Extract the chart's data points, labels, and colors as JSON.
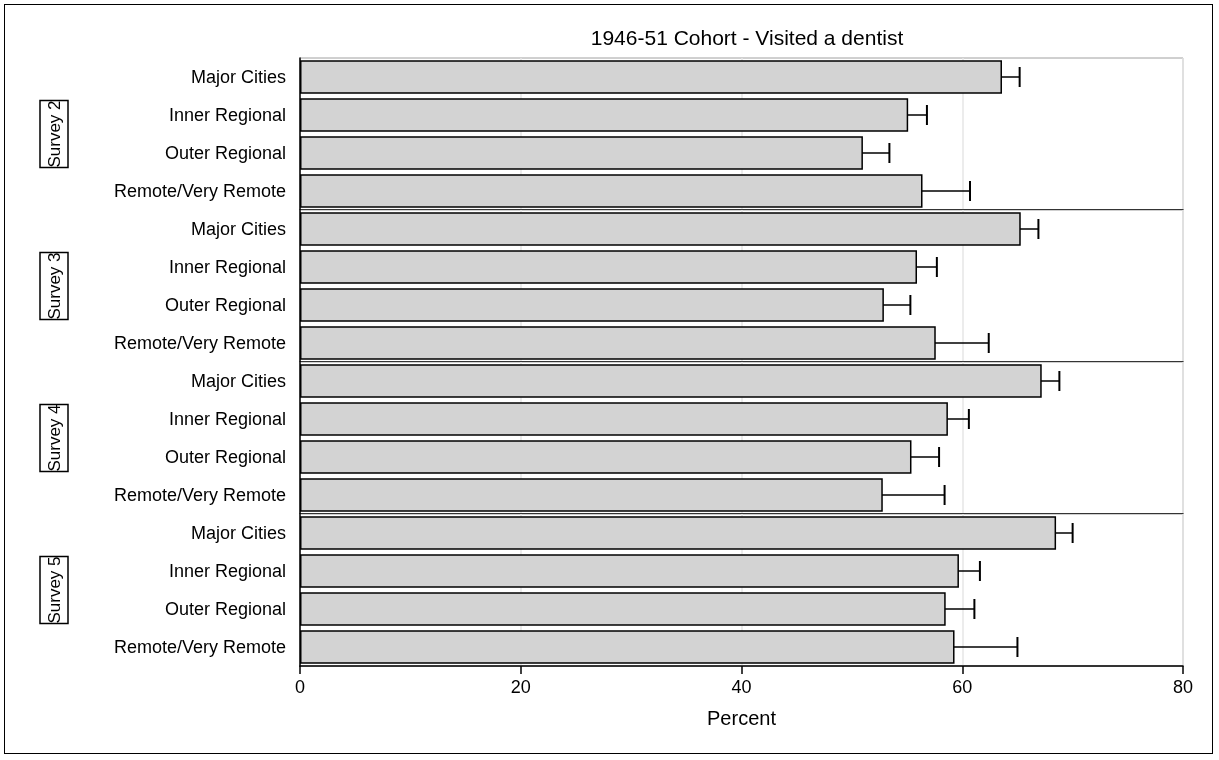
{
  "chart_data": [
    {
      "type": "bar",
      "orientation": "horizontal",
      "title": "1946-51 Cohort - Visited a dentist",
      "ylabel": "Survey 2",
      "categories": [
        "Major Cities",
        "Inner Regional",
        "Outer Regional",
        "Remote/Very Remote"
      ],
      "values": [
        63.6,
        55.1,
        51.0,
        56.4
      ],
      "errors": [
        1.6,
        1.7,
        2.4,
        4.3
      ],
      "color": "#d3d3d3",
      "xlim": [
        0,
        80
      ],
      "xticks": [
        0,
        20,
        40,
        60,
        80
      ],
      "grid": "x",
      "tick_labels": "y"
    },
    {
      "type": "bar",
      "orientation": "horizontal",
      "ylabel": "Survey 3",
      "categories": [
        "Major Cities",
        "Inner Regional",
        "Outer Regional",
        "Remote/Very Remote"
      ],
      "values": [
        65.3,
        55.9,
        52.9,
        57.6
      ],
      "errors": [
        1.6,
        1.8,
        2.4,
        4.8
      ],
      "color": "#d3d3d3",
      "xlim": [
        0,
        80
      ],
      "xticks": [
        0,
        20,
        40,
        60,
        80
      ],
      "grid": "x",
      "tick_labels": "y"
    },
    {
      "type": "bar",
      "orientation": "horizontal",
      "ylabel": "Survey 4",
      "categories": [
        "Major Cities",
        "Inner Regional",
        "Outer Regional",
        "Remote/Very Remote"
      ],
      "values": [
        67.2,
        58.7,
        55.4,
        52.8
      ],
      "errors": [
        1.6,
        1.9,
        2.5,
        5.6
      ],
      "color": "#d3d3d3",
      "xlim": [
        0,
        80
      ],
      "xticks": [
        0,
        20,
        40,
        60,
        80
      ],
      "grid": "x",
      "tick_labels": "y"
    },
    {
      "type": "bar",
      "orientation": "horizontal",
      "ylabel": "Survey 5",
      "xlabel": "Percent",
      "categories": [
        "Major Cities",
        "Inner Regional",
        "Outer Regional",
        "Remote/Very Remote"
      ],
      "values": [
        68.5,
        59.7,
        58.5,
        59.3
      ],
      "errors": [
        1.5,
        1.9,
        2.6,
        5.7
      ],
      "color": "#d3d3d3",
      "xlim": [
        0,
        80
      ],
      "xticks": [
        0,
        20,
        40,
        60,
        80
      ],
      "grid": "x"
    }
  ]
}
